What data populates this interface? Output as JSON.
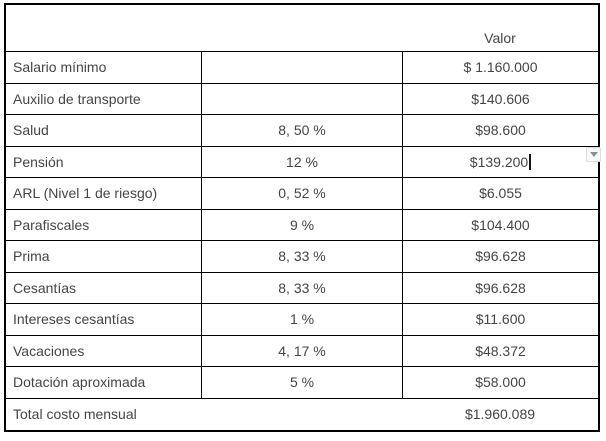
{
  "table": {
    "header": {
      "valor_label": "Valor"
    },
    "rows": [
      {
        "label": "Salario mínimo",
        "pct": "",
        "value": "$ 1.160.000",
        "caret": false
      },
      {
        "label": "Auxilio de transporte",
        "pct": "",
        "value": "$140.606",
        "caret": false
      },
      {
        "label": "Salud",
        "pct": "8, 50 %",
        "value": "$98.600",
        "caret": false
      },
      {
        "label": "Pensión",
        "pct": "12 %",
        "value": "$139.200",
        "caret": true
      },
      {
        "label": "ARL (Nivel 1 de riesgo)",
        "pct": "0, 52 %",
        "value": "$6.055",
        "caret": false
      },
      {
        "label": "Parafiscales",
        "pct": "9 %",
        "value": "$104.400",
        "caret": false
      },
      {
        "label": "Prima",
        "pct": "8, 33 %",
        "value": "$96.628",
        "caret": false
      },
      {
        "label": "Cesantías",
        "pct": "8, 33 %",
        "value": "$96.628",
        "caret": false
      },
      {
        "label": "Intereses cesantías",
        "pct": "1 %",
        "value": "$11.600",
        "caret": false
      },
      {
        "label": "Vacaciones",
        "pct": "4, 17 %",
        "value": "$48.372",
        "caret": false
      },
      {
        "label": "Dotación aproximada",
        "pct": "5 %",
        "value": "$58.000",
        "caret": false
      }
    ],
    "total": {
      "label": "Total costo mensual",
      "value": "$1.960.089"
    }
  },
  "icons": {
    "dropdown": "dropdown-arrow-icon"
  },
  "colors": {
    "border": "#000000",
    "text": "#454545",
    "chip_background": "#f8f9fa",
    "chip_border": "#dadce0",
    "chip_arrow": "#8a8f94"
  }
}
